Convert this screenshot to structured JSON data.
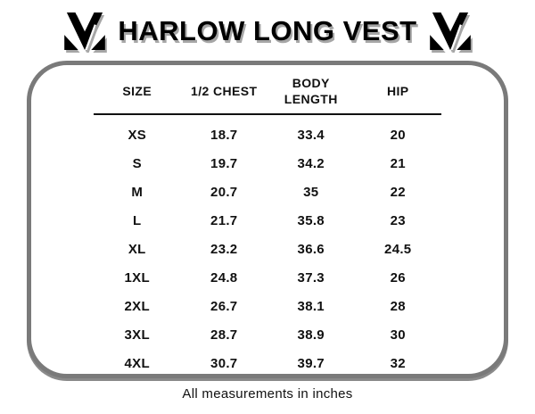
{
  "chart_data": {
    "type": "table",
    "title": "HARLOW LONG VEST",
    "columns": [
      "SIZE",
      "1/2 CHEST",
      "BODY LENGTH",
      "HIP"
    ],
    "rows": [
      [
        "XS",
        18.7,
        33.4,
        20
      ],
      [
        "S",
        19.7,
        34.2,
        21
      ],
      [
        "M",
        20.7,
        35,
        22
      ],
      [
        "L",
        21.7,
        35.8,
        23
      ],
      [
        "XL",
        23.2,
        36.6,
        24.5
      ],
      [
        "1XL",
        24.8,
        37.3,
        26
      ],
      [
        "2XL",
        26.7,
        38.1,
        28
      ],
      [
        "3XL",
        28.7,
        38.9,
        30
      ],
      [
        "4XL",
        30.7,
        39.7,
        32
      ]
    ],
    "note": "All measurements in inches"
  },
  "branding": {
    "logo_icon": "m-checkmark-logo",
    "logo_color": "#000000"
  },
  "colors": {
    "frame_border": "#7a7a7a",
    "text": "#111111",
    "background": "#ffffff",
    "title_shadow": "#a6a6a6"
  }
}
